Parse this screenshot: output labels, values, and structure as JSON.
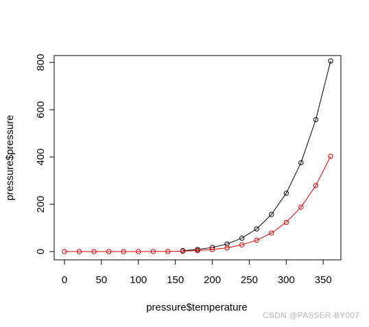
{
  "chart_data": {
    "type": "line",
    "xlabel": "pressure$temperature",
    "ylabel": "pressure$pressure",
    "xlim": [
      0,
      360
    ],
    "ylim": [
      0,
      806
    ],
    "x_ticks": [
      0,
      50,
      100,
      150,
      200,
      250,
      300,
      350
    ],
    "y_ticks": [
      0,
      200,
      400,
      600,
      800
    ],
    "grid": false,
    "markers": "open-circle",
    "series": [
      {
        "color": "#000000",
        "x": [
          160,
          180,
          200,
          220,
          240,
          260,
          280,
          300,
          320,
          340,
          360
        ],
        "y": [
          4.0,
          8.8,
          17.3,
          32.1,
          57.0,
          96.0,
          157.0,
          247.0,
          376.0,
          558.0,
          806.0
        ]
      },
      {
        "color": "#e00000",
        "x": [
          0,
          20,
          40,
          60,
          80,
          100,
          120,
          140,
          160,
          180,
          200,
          220,
          240,
          260,
          280,
          300,
          320,
          340,
          360
        ],
        "y": [
          0.0001,
          0.0006,
          0.003,
          0.0109,
          0.0335,
          0.0906,
          0.21,
          0.465,
          1.7,
          4.4,
          8.65,
          16.05,
          28.5,
          48.0,
          78.5,
          123.5,
          188.0,
          279.0,
          403.0
        ]
      }
    ]
  },
  "watermark": "CSDN @PASSER-BY007"
}
